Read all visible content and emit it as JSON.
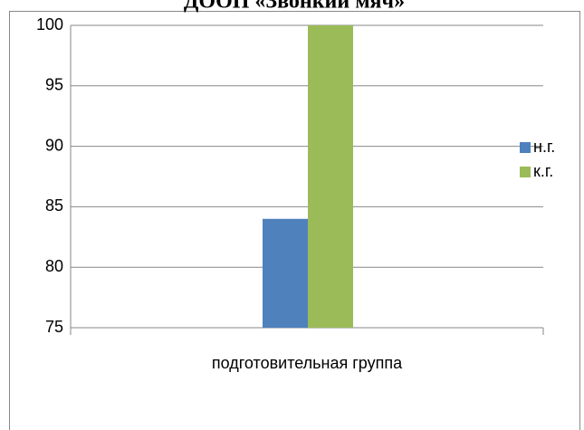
{
  "chart_data": {
    "type": "bar",
    "title": "ДООП «Звонкий мяч»",
    "categories": [
      "подготовительная группа"
    ],
    "series": [
      {
        "name": "н.г.",
        "color": "#4f81bd",
        "values": [
          84
        ]
      },
      {
        "name": "к.г.",
        "color": "#9bbb59",
        "values": [
          100
        ]
      }
    ],
    "ylim": [
      75,
      100
    ],
    "yticks": [
      75,
      80,
      85,
      90,
      95,
      100
    ],
    "grid": true,
    "legend": "right"
  }
}
